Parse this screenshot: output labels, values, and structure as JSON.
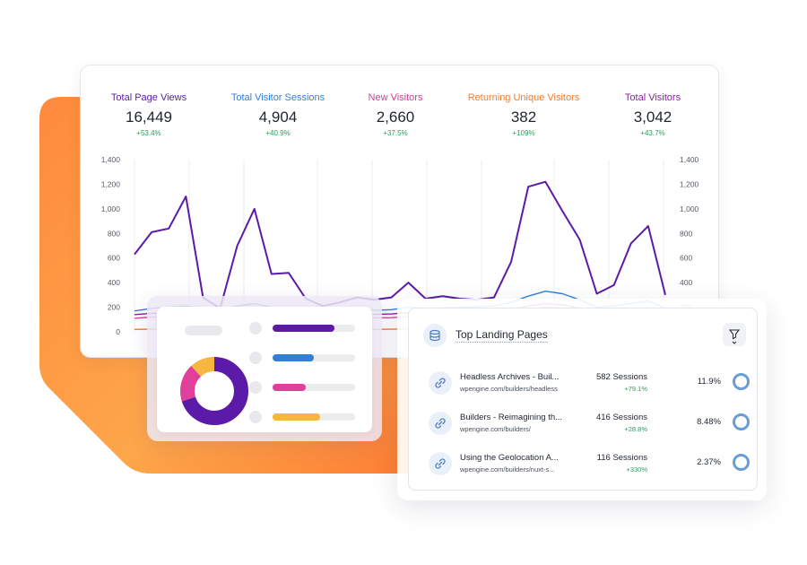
{
  "colors": {
    "purple": "#5b1ba8",
    "blue": "#2f7fdb",
    "pink": "#e0409a",
    "orange": "#ef7d2f",
    "magenta": "#8a1fa0",
    "yellow": "#f6b640",
    "green": "#2a9d5c"
  },
  "stats": [
    {
      "label": "Total Page Views",
      "value": "16,449",
      "change": "+53.4%",
      "color": "#5b1ba8"
    },
    {
      "label": "Total Visitor Sessions",
      "value": "4,904",
      "change": "+40.9%",
      "color": "#2f7fdb"
    },
    {
      "label": "New Visitors",
      "value": "2,660",
      "change": "+37.5%",
      "color": "#d63c9c"
    },
    {
      "label": "Returning Unique Visitors",
      "value": "382",
      "change": "+109%",
      "color": "#ef7d2f"
    },
    {
      "label": "Total Visitors",
      "value": "3,042",
      "change": "+43.7%",
      "color": "#8a1fa0"
    }
  ],
  "chart_data": {
    "type": "line",
    "y_ticks": [
      "1,400",
      "1,200",
      "1,000",
      "800",
      "600",
      "400",
      "200",
      "0"
    ],
    "ylim": [
      0,
      1400
    ],
    "grid": "vertical",
    "series": [
      {
        "color": "#5b1ba8",
        "values": [
          630,
          810,
          840,
          1100,
          280,
          190,
          700,
          1000,
          470,
          480,
          270,
          210,
          240,
          280,
          260,
          280,
          400,
          270,
          290,
          270,
          260,
          280,
          570,
          1180,
          1220,
          980,
          750,
          310,
          380,
          720,
          860,
          300
        ]
      },
      {
        "color": "#2f7fdb",
        "values": [
          170,
          190,
          200,
          210,
          190,
          170,
          210,
          230,
          200,
          190,
          170,
          160,
          170,
          180,
          175,
          180,
          200,
          190,
          195,
          200,
          205,
          210,
          240,
          290,
          330,
          310,
          260,
          200,
          210,
          230,
          250,
          190
        ]
      },
      {
        "color": "#e0409a",
        "values": [
          110,
          120,
          125,
          130,
          120,
          110,
          130,
          140,
          125,
          120,
          110,
          105,
          110,
          115,
          112,
          115,
          125,
          120,
          122,
          125,
          128,
          130,
          150,
          180,
          200,
          190,
          160,
          125,
          130,
          140,
          150,
          120
        ]
      },
      {
        "color": "#8a1fa0",
        "values": [
          140,
          150,
          155,
          160,
          150,
          140,
          160,
          170,
          155,
          150,
          140,
          135,
          140,
          145,
          142,
          145,
          155,
          150,
          152,
          155,
          158,
          160,
          180,
          210,
          230,
          220,
          190,
          155,
          160,
          170,
          180,
          150
        ]
      },
      {
        "color": "#ef7d2f",
        "values": [
          20,
          22,
          24,
          25,
          22,
          20,
          24,
          26,
          23,
          22,
          20,
          18,
          20,
          21,
          20,
          21,
          24,
          22,
          23,
          24,
          25,
          26,
          30,
          36,
          40,
          38,
          32,
          24,
          25,
          28,
          30,
          22
        ]
      }
    ]
  },
  "donut_card": {
    "slices": [
      {
        "color": "#5b1ba8",
        "fraction": 0.7
      },
      {
        "color": "#e0409a",
        "fraction": 0.18
      },
      {
        "color": "#f6b640",
        "fraction": 0.12
      }
    ],
    "bars": [
      {
        "color": "#5b1ba8",
        "fraction": 0.75
      },
      {
        "color": "#2f7fdb",
        "fraction": 0.5
      },
      {
        "color": "#e0409a",
        "fraction": 0.4
      },
      {
        "color": "#f6b640",
        "fraction": 0.58
      }
    ]
  },
  "landing": {
    "title": "Top Landing Pages",
    "header_icon": "database-icon",
    "filter_icon": "filter-icon",
    "rows": [
      {
        "title": "Headless Archives - Buil...",
        "url": "wpengine.com/builders/headless",
        "sessions": "582 Sessions",
        "change": "+79.1%",
        "percent": "11.9%",
        "icon": "link-icon"
      },
      {
        "title": "Builders - Reimagining th...",
        "url": "wpengine.com/builders/",
        "sessions": "416 Sessions",
        "change": "+28.8%",
        "percent": "8.48%",
        "icon": "link-icon"
      },
      {
        "title": "Using the Geolocation A...",
        "url": "wpengine.com/builders/nuxt-s...",
        "sessions": "116 Sessions",
        "change": "+330%",
        "percent": "2.37%",
        "icon": "link-icon"
      }
    ]
  }
}
